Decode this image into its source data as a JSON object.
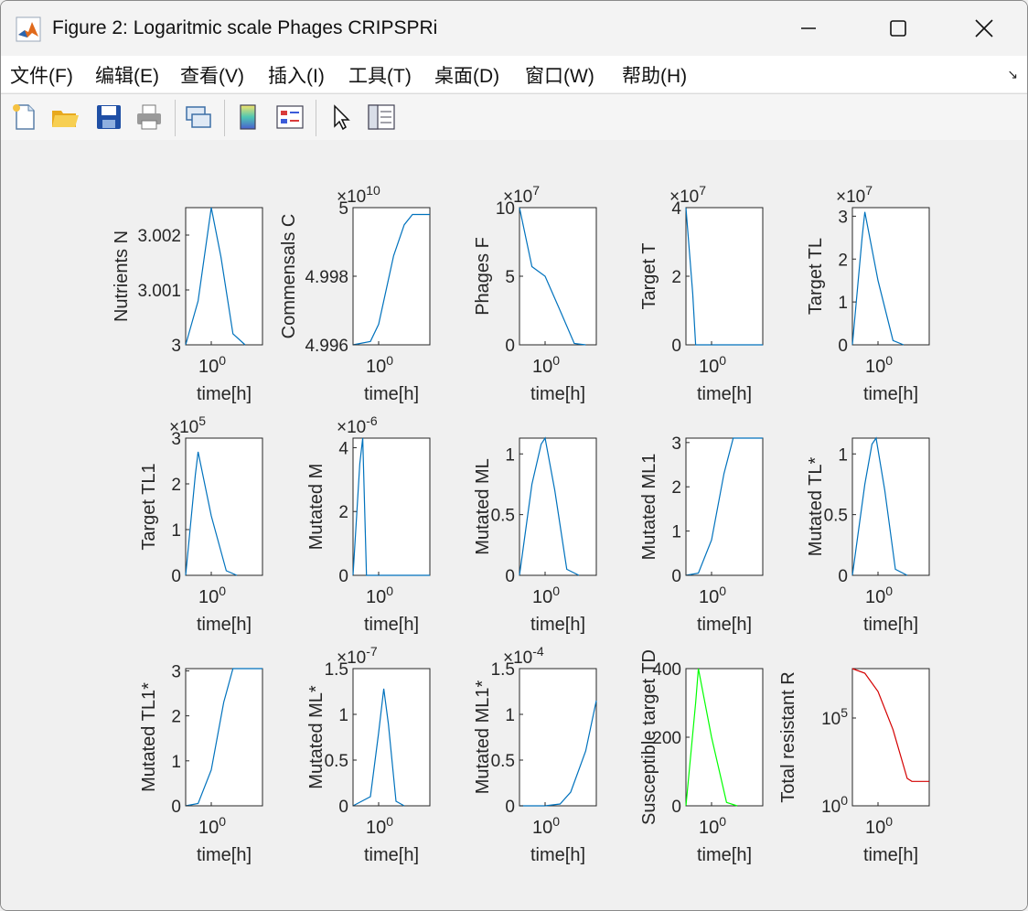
{
  "window": {
    "title": "Figure 2: Logaritmic scale Phages CRIPSPRi",
    "icon": "matlab-logo-icon"
  },
  "menu": [
    {
      "label": "文件(F)"
    },
    {
      "label": "编辑(E)"
    },
    {
      "label": "查看(V)"
    },
    {
      "label": "插入(I)"
    },
    {
      "label": "工具(T)"
    },
    {
      "label": "桌面(D)"
    },
    {
      "label": "窗口(W)"
    },
    {
      "label": "帮助(H)"
    }
  ],
  "toolbar": [
    "new-figure-icon",
    "open-folder-icon",
    "save-icon",
    "print-icon",
    "link-plot-icon",
    "colorbar-icon",
    "legend-icon",
    "pointer-icon",
    "property-editor-icon"
  ],
  "colors": {
    "blue": "#0072bd",
    "green": "#00ff00",
    "red": "#d40000"
  },
  "chart_data": [
    {
      "type": "line",
      "ylabel": "Nutrients N",
      "xlabel": "time[h]",
      "xticks": [
        "10^0"
      ],
      "yticks": [
        "3",
        "3.001",
        "3.002"
      ],
      "ylim": [
        3,
        3.0025
      ],
      "exponent": "",
      "color": "blue",
      "x": [
        0.5,
        0.7,
        1.0,
        1.3,
        1.8,
        2.5
      ],
      "y": [
        3.0,
        3.0008,
        3.0025,
        3.0016,
        3.0002,
        3.0
      ]
    },
    {
      "type": "line",
      "ylabel": "Commensals C",
      "xlabel": "time[h]",
      "xticks": [
        "10^0"
      ],
      "yticks": [
        "4.996",
        "4.998",
        "5"
      ],
      "ylim": [
        4.996,
        5.0
      ],
      "exponent": "×10^10",
      "color": "blue",
      "x": [
        0.5,
        0.8,
        1.0,
        1.5,
        2.0,
        2.5,
        4.0
      ],
      "y": [
        4.996,
        4.9961,
        4.9966,
        4.9986,
        4.9995,
        4.9998,
        4.9998
      ]
    },
    {
      "type": "line",
      "ylabel": "Phages F",
      "xlabel": "time[h]",
      "xticks": [
        "10^0"
      ],
      "yticks": [
        "0",
        "5",
        "10"
      ],
      "ylim": [
        0,
        10
      ],
      "exponent": "×10^7",
      "color": "blue",
      "x": [
        0.5,
        0.7,
        1.0,
        1.5,
        2.2,
        3.0
      ],
      "y": [
        10,
        5.7,
        5.0,
        2.5,
        0.1,
        0
      ]
    },
    {
      "type": "line",
      "ylabel": "Target T",
      "xlabel": "time[h]",
      "xticks": [
        "10^0"
      ],
      "yticks": [
        "0",
        "2",
        "4"
      ],
      "ylim": [
        0,
        4
      ],
      "exponent": "×10^7",
      "color": "blue",
      "x": [
        0.5,
        0.6,
        0.65,
        4.0
      ],
      "y": [
        4,
        1.5,
        0,
        0
      ]
    },
    {
      "type": "line",
      "ylabel": "Target TL",
      "xlabel": "time[h]",
      "xticks": [
        "10^0"
      ],
      "yticks": [
        "0",
        "1",
        "2",
        "3"
      ],
      "ylim": [
        0,
        3.2
      ],
      "exponent": "×10^7",
      "color": "blue",
      "x": [
        0.5,
        0.65,
        0.7,
        1.0,
        1.5,
        2.0
      ],
      "y": [
        0,
        2.5,
        3.1,
        1.5,
        0.1,
        0
      ]
    },
    {
      "type": "line",
      "ylabel": "Target TL1",
      "xlabel": "time[h]",
      "xticks": [
        "10^0"
      ],
      "yticks": [
        "0",
        "1",
        "2",
        "3"
      ],
      "ylim": [
        0,
        3.0
      ],
      "exponent": "×10^5",
      "color": "blue",
      "x": [
        0.5,
        0.65,
        0.7,
        1.0,
        1.5,
        2.0
      ],
      "y": [
        0,
        2.2,
        2.7,
        1.3,
        0.1,
        0
      ]
    },
    {
      "type": "line",
      "ylabel": "Mutated M",
      "xlabel": "time[h]",
      "xticks": [
        "10^0"
      ],
      "yticks": [
        "0",
        "2",
        "4"
      ],
      "ylim": [
        0,
        4.3
      ],
      "exponent": "×10^-6",
      "color": "blue",
      "x": [
        0.5,
        0.6,
        0.65,
        0.72,
        4.0
      ],
      "y": [
        0,
        3.5,
        4.3,
        0,
        0
      ]
    },
    {
      "type": "line",
      "ylabel": "Mutated ML",
      "xlabel": "time[h]",
      "xticks": [
        "10^0"
      ],
      "yticks": [
        "0",
        "0.5",
        "1"
      ],
      "ylim": [
        0,
        1.13
      ],
      "exponent": "",
      "color": "blue",
      "x": [
        0.5,
        0.7,
        0.9,
        1.0,
        1.3,
        1.8,
        2.5
      ],
      "y": [
        0,
        0.75,
        1.08,
        1.13,
        0.7,
        0.05,
        0
      ]
    },
    {
      "type": "line",
      "ylabel": "Mutated ML1",
      "xlabel": "time[h]",
      "xticks": [
        "10^0"
      ],
      "yticks": [
        "0",
        "1",
        "2",
        "3"
      ],
      "ylim": [
        0,
        3.1
      ],
      "exponent": "",
      "color": "blue",
      "x": [
        0.5,
        0.7,
        1.0,
        1.4,
        1.8,
        2.5,
        4.0
      ],
      "y": [
        0,
        0.05,
        0.8,
        2.3,
        3.1,
        3.1,
        3.1
      ]
    },
    {
      "type": "line",
      "ylabel": "Mutated TL*",
      "xlabel": "time[h]",
      "xticks": [
        "10^0"
      ],
      "yticks": [
        "0",
        "0.5",
        "1"
      ],
      "ylim": [
        0,
        1.13
      ],
      "exponent": "",
      "color": "blue",
      "x": [
        0.5,
        0.7,
        0.85,
        0.95,
        1.2,
        1.6,
        2.2
      ],
      "y": [
        0,
        0.75,
        1.08,
        1.13,
        0.7,
        0.05,
        0
      ]
    },
    {
      "type": "line",
      "ylabel": "Mutated TL1*",
      "xlabel": "time[h]",
      "xticks": [
        "10^0"
      ],
      "yticks": [
        "0",
        "1",
        "2",
        "3"
      ],
      "ylim": [
        0,
        3.05
      ],
      "exponent": "",
      "color": "blue",
      "x": [
        0.5,
        0.7,
        1.0,
        1.4,
        1.8,
        2.5,
        4.0
      ],
      "y": [
        0,
        0.05,
        0.8,
        2.3,
        3.05,
        3.05,
        3.05
      ]
    },
    {
      "type": "line",
      "ylabel": "Mutated ML*",
      "xlabel": "time[h]",
      "xticks": [
        "10^0"
      ],
      "yticks": [
        "0",
        "0.5",
        "1",
        "1.5"
      ],
      "ylim": [
        0,
        1.5
      ],
      "exponent": "×10^-7",
      "color": "blue",
      "x": [
        0.5,
        0.8,
        1.0,
        1.15,
        1.3,
        1.6,
        2.0
      ],
      "y": [
        0,
        0.1,
        0.8,
        1.28,
        0.9,
        0.05,
        0
      ]
    },
    {
      "type": "line",
      "ylabel": "Mutated ML1*",
      "xlabel": "time[h]",
      "xticks": [
        "10^0"
      ],
      "yticks": [
        "0",
        "0.5",
        "1",
        "1.5"
      ],
      "ylim": [
        0,
        1.5
      ],
      "exponent": "×10^-4",
      "color": "blue",
      "x": [
        0.5,
        1.0,
        1.5,
        2.0,
        3.0,
        4.0
      ],
      "y": [
        0,
        0,
        0.02,
        0.15,
        0.6,
        1.15
      ]
    },
    {
      "type": "line",
      "ylabel": "Susceptible target TD",
      "xlabel": "time[h]",
      "xticks": [
        "10^0"
      ],
      "yticks": [
        "0",
        "200",
        "400"
      ],
      "ylim": [
        0,
        400
      ],
      "exponent": "",
      "color": "green",
      "x": [
        0.5,
        0.65,
        0.7,
        1.0,
        1.5,
        2.0
      ],
      "y": [
        0,
        300,
        400,
        200,
        10,
        0
      ]
    },
    {
      "type": "line",
      "ylabel": "Total resistant R",
      "xlabel": "time[h]",
      "xticks": [
        "10^0"
      ],
      "yticks": [
        "10^0",
        "10^5"
      ],
      "ylim": [
        0,
        9
      ],
      "yscale": "log",
      "exponent": "",
      "color": "red",
      "x": [
        0.5,
        0.7,
        1.0,
        1.5,
        2.2,
        2.5,
        4.0
      ],
      "y": [
        9,
        8.7,
        7.5,
        5.0,
        1.8,
        1.6,
        1.6
      ]
    }
  ]
}
